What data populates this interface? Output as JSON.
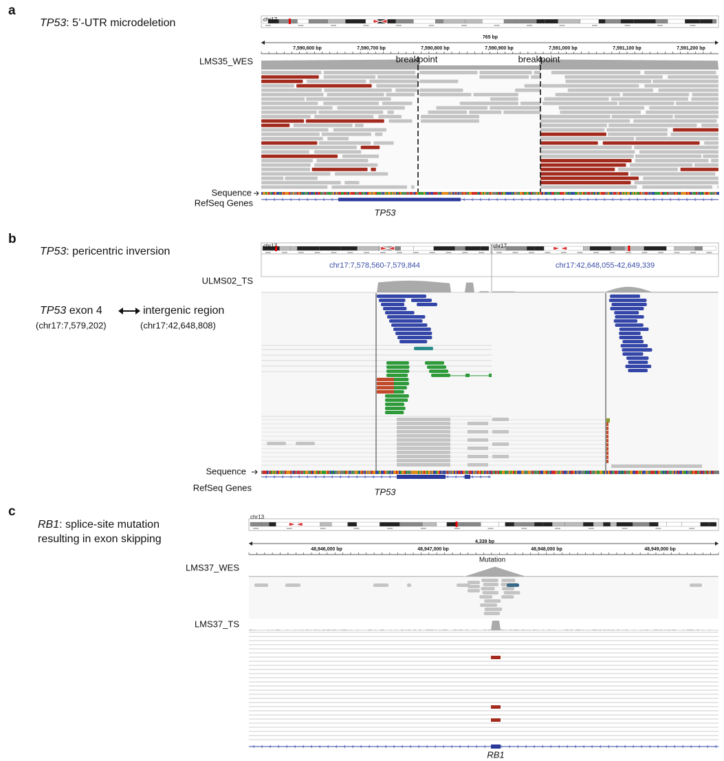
{
  "panels": [
    {
      "letter": "a",
      "gene": "TP53",
      "title": ": 5’-UTR microdeletion",
      "chromosome": "chr17",
      "span": "765 bp",
      "ruler": [
        "7,590,600 bp",
        "7,590,700 bp",
        "7,590,800 bp",
        "7,590,900 bp",
        "7,591,000 bp",
        "7,591,100 bp",
        "7,591,200 bp"
      ],
      "track": "LMS35_WES",
      "breakpoints": [
        "breakpoint",
        "breakpoint"
      ],
      "sequence_label": "Sequence",
      "genes_label": "RefSeq Genes",
      "gene_track_name": "TP53"
    },
    {
      "letter": "b",
      "gene": "TP53",
      "title": ": pericentric inversion",
      "chromosomes": [
        "chr17",
        "chr17"
      ],
      "loci": [
        "chr17:7,578,560-7,579,844",
        "chr17:42,648,055-42,649,339"
      ],
      "track": "ULMS02_TS",
      "fusion": {
        "gene": "TP53",
        "left": " exon 4",
        "right": "intergenic region",
        "left_coord": "(chr17:7,579,202)",
        "right_coord": "(chr17:42,648,808)"
      },
      "sequence_label": "Sequence",
      "genes_label": "RefSeq Genes",
      "gene_track_name": "TP53"
    },
    {
      "letter": "c",
      "gene": "RB1",
      "title_lines": [
        ": splice-site mutation",
        "resulting in exon skipping"
      ],
      "chromosome": "chr13",
      "span": "4,339 bp",
      "ruler": [
        "48,946,000 bp",
        "48,947,000 bp",
        "48,948,000 bp",
        "48,949,000 bp"
      ],
      "annotation": "Mutation",
      "tracks": [
        "LMS37_WES",
        "LMS37_TS"
      ],
      "gene_track_name": "RB1"
    }
  ]
}
